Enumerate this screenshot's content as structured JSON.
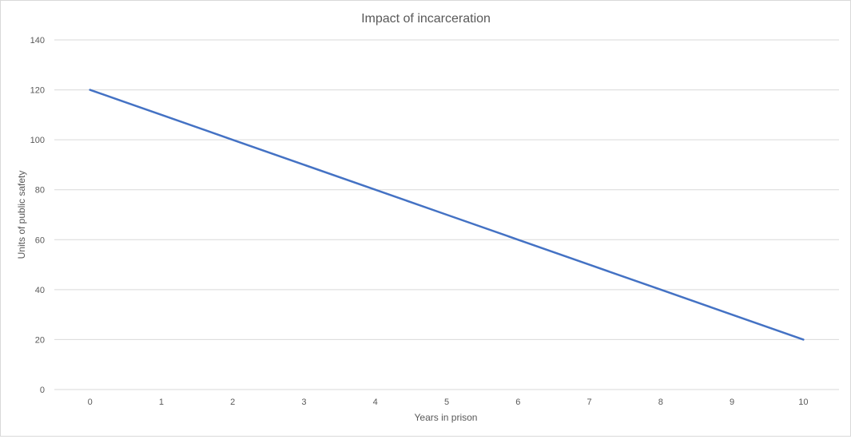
{
  "chart_data": {
    "type": "line",
    "title": "Impact of incarceration",
    "xlabel": "Years in prison",
    "ylabel": "Units of public safety",
    "x": [
      0,
      1,
      2,
      3,
      4,
      5,
      6,
      7,
      8,
      9,
      10
    ],
    "series": [
      {
        "values": [
          120,
          110,
          100,
          90,
          80,
          70,
          60,
          50,
          40,
          30,
          20
        ]
      }
    ],
    "xticks": [
      "0",
      "1",
      "2",
      "3",
      "4",
      "5",
      "6",
      "7",
      "8",
      "9",
      "10"
    ],
    "yticks": [
      "0",
      "20",
      "40",
      "60",
      "80",
      "100",
      "120",
      "140"
    ],
    "ylim": [
      0,
      140
    ],
    "grid": "horizontal",
    "legend": "none",
    "colors": {
      "line": "#4472c4",
      "grid": "#d9d9d9",
      "text": "#595959",
      "title": "#595959"
    }
  }
}
